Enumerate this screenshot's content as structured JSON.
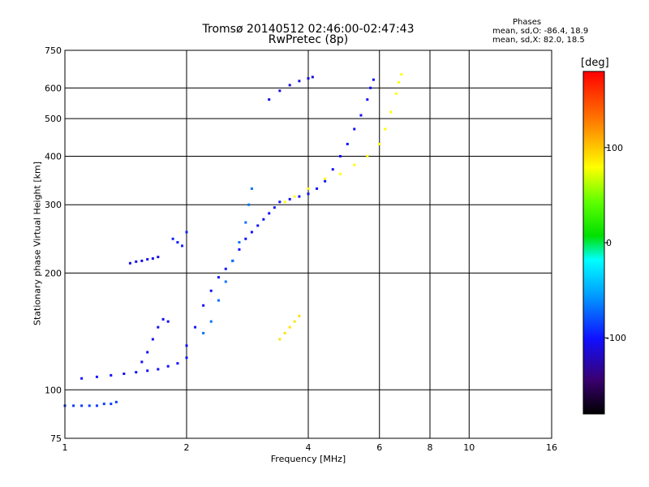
{
  "chart_data": {
    "type": "scatter",
    "title": "Tromsø 20140512 02:46:00-02:47:43",
    "subtitle": "RwPretec (8p)",
    "xlabel": "Frequency [MHz]",
    "ylabel": "Stationary phase Virtual Height [km]",
    "x_scale": "log",
    "y_scale": "log",
    "xlim": [
      1,
      16
    ],
    "ylim": [
      75,
      750
    ],
    "x_ticks": [
      1,
      2,
      4,
      6,
      8,
      10,
      16
    ],
    "x_tick_labels": [
      "1",
      "2",
      "4",
      "6",
      "8",
      "10",
      "16"
    ],
    "y_ticks": [
      75,
      100,
      200,
      300,
      400,
      500,
      600,
      750
    ],
    "y_tick_labels": [
      "75",
      "100",
      "200",
      "300",
      "400",
      "500",
      "600",
      "750"
    ],
    "grid": true,
    "phase_stats": {
      "title": "Phases",
      "o_line": "mean, sd,O: -86.4, 18.9",
      "x_line": "mean, sd,X:  82.0, 18.5"
    },
    "colorbar": {
      "label": "[deg]",
      "ticks": [
        100,
        0,
        -100
      ],
      "tick_labels": [
        "100",
        "0",
        "-100"
      ],
      "range": [
        -180,
        180
      ]
    },
    "series": [
      {
        "trace": "O-low",
        "phase": -86,
        "points": [
          [
            1.0,
            91
          ],
          [
            1.05,
            91
          ],
          [
            1.1,
            91
          ],
          [
            1.15,
            91
          ],
          [
            1.2,
            91
          ],
          [
            1.25,
            92
          ],
          [
            1.3,
            92
          ],
          [
            1.34,
            93
          ]
        ]
      },
      {
        "trace": "O-E",
        "phase": -100,
        "points": [
          [
            1.1,
            107
          ],
          [
            1.2,
            108
          ],
          [
            1.3,
            109
          ],
          [
            1.4,
            110
          ],
          [
            1.5,
            111
          ],
          [
            1.6,
            112
          ],
          [
            1.7,
            113
          ],
          [
            1.8,
            115
          ],
          [
            1.9,
            117
          ],
          [
            2.0,
            121
          ]
        ]
      },
      {
        "trace": "O-F1-low",
        "phase": -105,
        "points": [
          [
            1.55,
            118
          ],
          [
            1.6,
            125
          ],
          [
            1.65,
            135
          ],
          [
            1.7,
            145
          ],
          [
            1.75,
            152
          ],
          [
            1.8,
            150
          ]
        ]
      },
      {
        "trace": "O-spread-F1",
        "phase": -110,
        "points": [
          [
            1.45,
            212
          ],
          [
            1.5,
            214
          ],
          [
            1.55,
            215
          ],
          [
            1.6,
            217
          ],
          [
            1.65,
            218
          ],
          [
            1.7,
            220
          ]
        ]
      },
      {
        "trace": "O-upper",
        "phase": -95,
        "points": [
          [
            1.85,
            245
          ],
          [
            1.9,
            240
          ],
          [
            1.95,
            235
          ],
          [
            2.0,
            255
          ]
        ]
      },
      {
        "trace": "O-F1",
        "phase": -100,
        "points": [
          [
            2.0,
            130
          ],
          [
            2.1,
            145
          ],
          [
            2.2,
            165
          ],
          [
            2.3,
            180
          ],
          [
            2.4,
            195
          ],
          [
            2.5,
            205
          ],
          [
            2.6,
            215
          ],
          [
            2.7,
            230
          ],
          [
            2.8,
            245
          ],
          [
            2.9,
            255
          ],
          [
            3.0,
            265
          ],
          [
            3.1,
            275
          ],
          [
            3.2,
            285
          ],
          [
            3.3,
            295
          ],
          [
            3.4,
            305
          ],
          [
            3.6,
            310
          ],
          [
            3.8,
            315
          ],
          [
            4.0,
            320
          ],
          [
            4.2,
            330
          ],
          [
            4.4,
            345
          ],
          [
            4.6,
            370
          ],
          [
            4.8,
            400
          ],
          [
            5.0,
            430
          ],
          [
            5.2,
            470
          ],
          [
            5.4,
            510
          ],
          [
            5.6,
            560
          ],
          [
            5.7,
            600
          ],
          [
            5.8,
            630
          ]
        ]
      },
      {
        "trace": "O-spread",
        "phase": -70,
        "points": [
          [
            2.2,
            140
          ],
          [
            2.3,
            150
          ],
          [
            2.4,
            170
          ],
          [
            2.5,
            190
          ],
          [
            2.6,
            215
          ],
          [
            2.7,
            240
          ],
          [
            2.8,
            270
          ],
          [
            2.85,
            300
          ],
          [
            2.9,
            330
          ]
        ]
      },
      {
        "trace": "O-F2-upper",
        "phase": -110,
        "points": [
          [
            3.2,
            560
          ],
          [
            3.4,
            590
          ],
          [
            3.6,
            610
          ],
          [
            3.8,
            625
          ],
          [
            4.0,
            635
          ],
          [
            4.1,
            640
          ]
        ]
      },
      {
        "trace": "X-F1",
        "phase": 90,
        "points": [
          [
            3.4,
            135
          ],
          [
            3.5,
            140
          ],
          [
            3.6,
            145
          ],
          [
            3.7,
            150
          ],
          [
            3.8,
            155
          ]
        ]
      },
      {
        "trace": "X-F2",
        "phase": 80,
        "points": [
          [
            3.5,
            305
          ],
          [
            3.7,
            315
          ],
          [
            4.0,
            330
          ],
          [
            4.4,
            350
          ],
          [
            4.8,
            360
          ],
          [
            5.2,
            380
          ],
          [
            5.6,
            400
          ],
          [
            6.0,
            430
          ],
          [
            6.2,
            470
          ],
          [
            6.4,
            520
          ],
          [
            6.6,
            580
          ],
          [
            6.7,
            620
          ],
          [
            6.8,
            650
          ]
        ]
      }
    ]
  }
}
